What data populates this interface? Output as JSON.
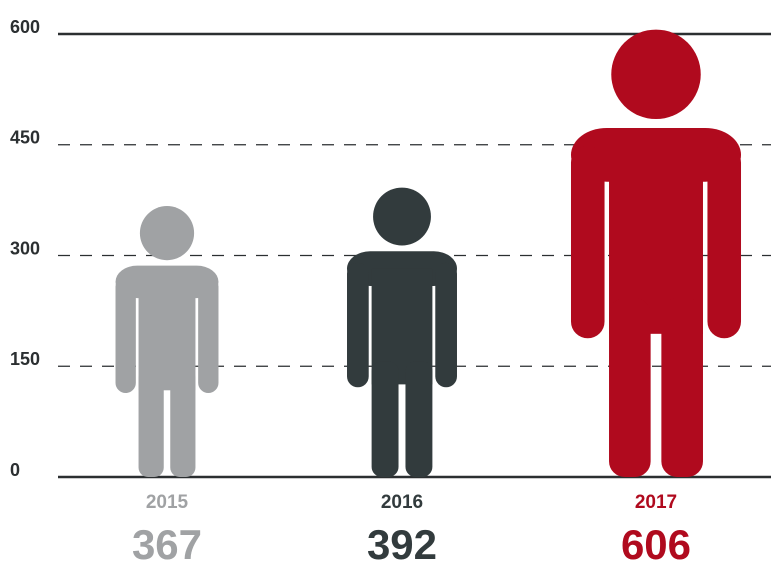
{
  "chart_data": {
    "type": "pictograph",
    "categories": [
      "2015",
      "2016",
      "2017"
    ],
    "values": [
      367,
      392,
      606
    ],
    "colors": [
      "#a0a2a4",
      "#323b3d",
      "#b00a1e"
    ],
    "ylim": [
      0,
      600
    ],
    "yticks": [
      0,
      150,
      300,
      450,
      600
    ],
    "grid": true
  }
}
